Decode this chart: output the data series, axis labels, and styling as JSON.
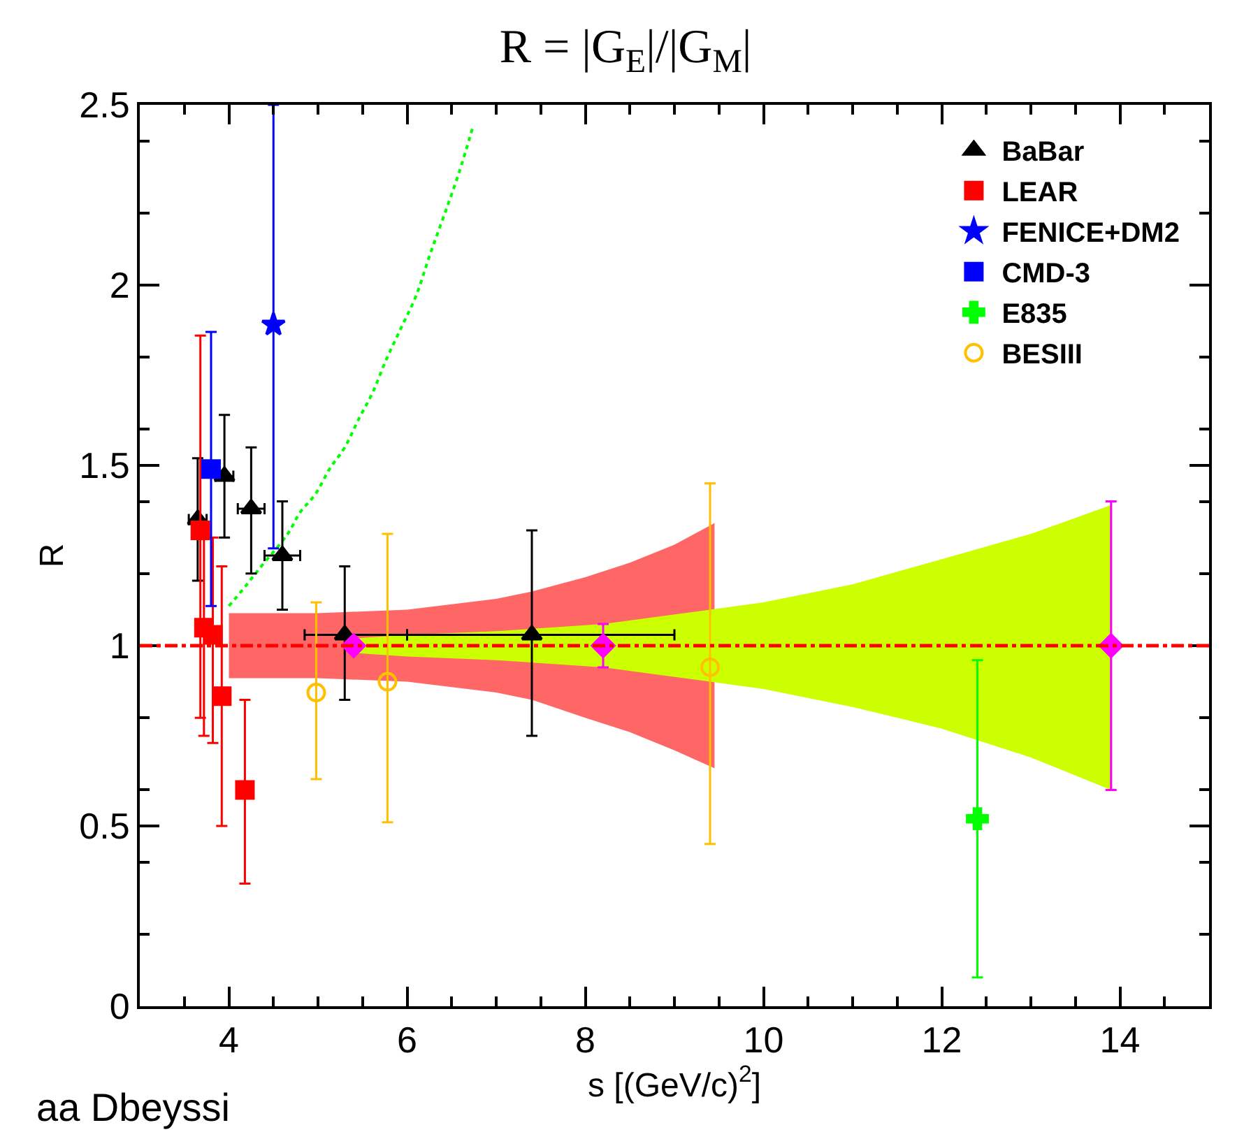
{
  "chart_data": {
    "type": "scatter",
    "title": "R = |G$_{E}$|/|G$_{M}$|",
    "xlabel": "s [(GeV/c)$^{2}$]",
    "ylabel": "R",
    "xlim": [
      3,
      15
    ],
    "xticks": [
      4,
      6,
      8,
      10,
      12,
      14
    ],
    "ylim": [
      0,
      2.5
    ],
    "yticks": [
      0,
      0.5,
      1,
      1.5,
      2,
      2.5
    ],
    "grid": false,
    "legend": "top right",
    "ref_lines": [
      {
        "axis": "y",
        "value": 1,
        "label": null,
        "color": "#ff0000",
        "line_style": "dashdot"
      }
    ],
    "annotations": [
      "aa Dbeyssi"
    ],
    "series": [
      {
        "type": "area",
        "color": "#ff6666",
        "x": [
          4,
          5,
          6,
          7,
          7.4,
          8,
          8.5,
          9,
          9.45
        ],
        "values": [
          null,
          null,
          null,
          null,
          null,
          null,
          null,
          null,
          null
        ],
        "lower": [
          0.91,
          0.91,
          0.9,
          0.87,
          0.85,
          0.8,
          0.76,
          0.71,
          0.66
        ],
        "upper": [
          1.09,
          1.09,
          1.1,
          1.13,
          1.15,
          1.19,
          1.23,
          1.28,
          1.34
        ]
      },
      {
        "type": "area",
        "color": "#ccff00",
        "x": [
          5.4,
          6,
          7,
          8.2,
          9.4,
          10,
          11,
          12,
          13,
          13.9
        ],
        "values": [
          null,
          null,
          null,
          null,
          null,
          null,
          null,
          null,
          null,
          null
        ],
        "lower": [
          0.98,
          0.97,
          0.96,
          0.94,
          0.9,
          0.88,
          0.83,
          0.77,
          0.69,
          0.6
        ],
        "upper": [
          1.02,
          1.03,
          1.04,
          1.06,
          1.1,
          1.12,
          1.17,
          1.24,
          1.31,
          1.39
        ]
      },
      {
        "type": "line",
        "color": "#00ff00",
        "line_style": "dotted",
        "marker": "none",
        "x": [
          4.0,
          4.17,
          4.33,
          4.66,
          4.8,
          4.97,
          5.13,
          5.3,
          5.46,
          5.61,
          5.76,
          5.93,
          6.1,
          6.25,
          6.41,
          6.58,
          6.74
        ],
        "values": [
          1.11,
          1.16,
          1.21,
          1.31,
          1.37,
          1.42,
          1.49,
          1.55,
          1.63,
          1.7,
          1.79,
          1.88,
          1.97,
          2.08,
          2.19,
          2.31,
          2.44
        ]
      },
      {
        "name": "BaBar",
        "color": "#000000",
        "marker": "triangle",
        "x": [
          3.65,
          3.95,
          4.25,
          4.6,
          5.3,
          7.4
        ],
        "values": [
          1.35,
          1.47,
          1.38,
          1.25,
          1.03,
          1.03
        ],
        "errors": [
          [
            1.18,
            1.52
          ],
          [
            1.3,
            1.64
          ],
          [
            1.2,
            1.55
          ],
          [
            1.1,
            1.4
          ],
          [
            0.85,
            1.22
          ],
          [
            0.75,
            1.32
          ]
        ],
        "xerrors": [
          [
            3.55,
            3.75
          ],
          [
            3.85,
            4.05
          ],
          [
            4.1,
            4.4
          ],
          [
            4.4,
            4.8
          ],
          [
            4.85,
            6.0
          ],
          [
            6.0,
            9.0
          ]
        ]
      },
      {
        "name": "LEAR",
        "color": "#ff0000",
        "marker": "square",
        "x": [
          3.68,
          3.72,
          3.82,
          3.92,
          4.18
        ],
        "values": [
          1.32,
          1.05,
          1.03,
          0.86,
          0.6
        ],
        "errors": [
          [
            0.8,
            1.86
          ],
          [
            0.75,
            1.3
          ],
          [
            0.73,
            1.3
          ],
          [
            0.5,
            1.22
          ],
          [
            0.34,
            0.85
          ]
        ]
      },
      {
        "name": "FENICE+DM2",
        "color": "#0000ff",
        "marker": "star",
        "x": [
          4.5
        ],
        "values": [
          1.89
        ],
        "errors": [
          [
            1.27,
            2.5
          ]
        ]
      },
      {
        "name": "CMD-3",
        "color": "#0000ff",
        "marker": "square",
        "x": [
          3.8
        ],
        "values": [
          1.49
        ],
        "errors": [
          [
            1.11,
            1.87
          ]
        ]
      },
      {
        "name": "E835",
        "color": "#00ff00",
        "marker": "cross",
        "x": [
          12.4
        ],
        "values": [
          0.52
        ],
        "errors": [
          [
            0.08,
            0.96
          ]
        ]
      },
      {
        "name": "BESIII",
        "color": "#ffc000",
        "marker": "circle",
        "x": [
          4.98,
          5.78,
          9.4
        ],
        "values": [
          0.87,
          0.9,
          0.94
        ],
        "errors": [
          [
            0.63,
            1.12
          ],
          [
            0.51,
            1.31
          ],
          [
            0.45,
            1.45
          ]
        ]
      },
      {
        "color": "#ff00ff",
        "marker": "diamond",
        "x": [
          5.4,
          8.2,
          13.9
        ],
        "values": [
          1.0,
          1.0,
          1.0
        ],
        "errors": [
          null,
          [
            0.94,
            1.06
          ],
          [
            0.6,
            1.4
          ]
        ]
      }
    ]
  }
}
